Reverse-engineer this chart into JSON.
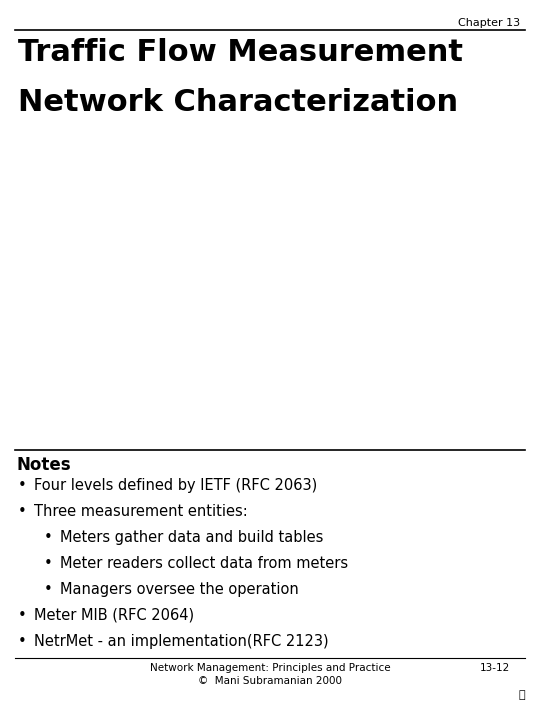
{
  "chapter_label": "Chapter 13",
  "title_line1": "Traffic Flow Measurement",
  "title_line2": "Network Characterization",
  "notes_header": "Notes",
  "bullet_items": [
    {
      "level": 1,
      "text": "Four levels defined by IETF (RFC 2063)"
    },
    {
      "level": 1,
      "text": "Three measurement entities:"
    },
    {
      "level": 2,
      "text": "Meters gather data and build tables"
    },
    {
      "level": 2,
      "text": "Meter readers collect data from meters"
    },
    {
      "level": 2,
      "text": "Managers oversee the operation"
    },
    {
      "level": 1,
      "text": "Meter MIB (RFC 2064)"
    },
    {
      "level": 1,
      "text": "NetrMet - an implementation(RFC 2123)"
    }
  ],
  "footer_left1": "Network Management: Principles and Practice",
  "footer_left2": "©  Mani Subramanian 2000",
  "footer_right": "13-12",
  "bg_color": "#ffffff",
  "text_color": "#000000",
  "title_fontsize": 22,
  "chapter_fontsize": 8,
  "notes_header_fontsize": 12,
  "bullet_fontsize": 10.5,
  "footer_fontsize": 7.5
}
